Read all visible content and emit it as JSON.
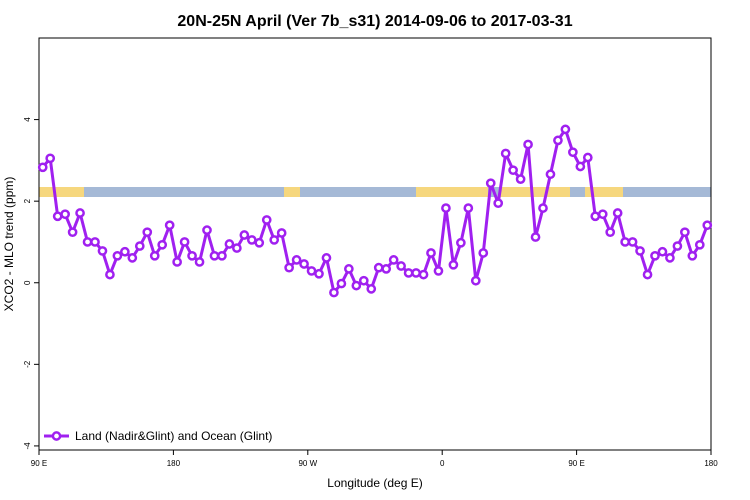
{
  "chart_data": {
    "type": "line",
    "title": "20N-25N April (Ver 7b_s31)   2014-09-06 to 2017-03-31",
    "x_label": "Longitude (deg E)",
    "y_label": "XCO2 - MLO trend (ppm)",
    "legend": "bottom-left",
    "x": [
      92.5,
      97.5,
      102.5,
      107.5,
      112.5,
      117.5,
      122.5,
      127.5,
      132.5,
      137.5,
      142.5,
      147.5,
      152.5,
      157.5,
      162.5,
      167.5,
      172.5,
      177.5,
      182.5,
      187.5,
      192.5,
      197.5,
      202.5,
      207.5,
      212.5,
      217.5,
      222.5,
      227.5,
      232.5,
      237.5,
      242.5,
      247.5,
      252.5,
      257.5,
      262.5,
      267.5,
      272.5,
      277.5,
      282.5,
      287.5,
      292.5,
      297.5,
      302.5,
      307.5,
      312.5,
      317.5,
      322.5,
      327.5,
      332.5,
      337.5,
      342.5,
      347.5,
      352.5,
      357.5,
      362.5,
      367.5,
      372.5,
      377.5,
      382.5,
      387.5,
      392.5,
      397.5,
      402.5,
      407.5,
      412.5,
      417.5,
      422.5,
      427.5,
      432.5,
      437.5,
      442.5,
      447.5,
      452.5,
      457.5,
      462.5,
      467.5,
      472.5,
      477.5,
      482.5,
      487.5,
      492.5,
      497.5,
      502.5,
      507.5,
      512.5,
      517.5,
      522.5,
      527.5,
      532.5,
      537.5
    ],
    "series": [
      {
        "name": "Land (Nadir&Glint) and Ocean (Glint)",
        "color": "#a020f0",
        "values": [
          2.83,
          3.05,
          1.63,
          1.68,
          1.24,
          1.71,
          1.0,
          1.0,
          0.78,
          0.2,
          0.66,
          0.76,
          0.61,
          0.9,
          1.24,
          0.66,
          0.93,
          1.41,
          0.51,
          1.0,
          0.66,
          0.51,
          1.29,
          0.66,
          0.66,
          0.95,
          0.85,
          1.17,
          1.05,
          0.98,
          1.54,
          1.05,
          1.22,
          0.37,
          0.56,
          0.46,
          0.29,
          0.22,
          0.61,
          -0.24,
          -0.02,
          0.34,
          -0.07,
          0.05,
          -0.15,
          0.37,
          0.34,
          0.56,
          0.41,
          0.24,
          0.24,
          0.2,
          0.73,
          0.29,
          1.83,
          0.44,
          0.98,
          1.83,
          0.05,
          0.73,
          2.44,
          1.95,
          3.17,
          2.76,
          2.54,
          3.39,
          1.12,
          1.83,
          2.66,
          3.49,
          3.76,
          3.2,
          2.85,
          3.07,
          1.63,
          1.68,
          1.24,
          1.71,
          1.0,
          1.0,
          0.78,
          0.2,
          0.66,
          0.76,
          0.61,
          0.9,
          1.24,
          0.66,
          0.93,
          1.41
        ]
      }
    ],
    "xlim": [
      90,
      540
    ],
    "xticks": [
      {
        "value": 90,
        "label": "90 E"
      },
      180,
      {
        "value": 270,
        "label": "90 W"
      },
      {
        "value": 360,
        "label": "0"
      },
      {
        "value": 450,
        "label": "90 E"
      },
      {
        "value": 540,
        "label": "180"
      }
    ],
    "ylim": [
      -4.1,
      6.0
    ],
    "yticks": [
      -4,
      -2,
      0,
      2,
      4
    ]
  }
}
